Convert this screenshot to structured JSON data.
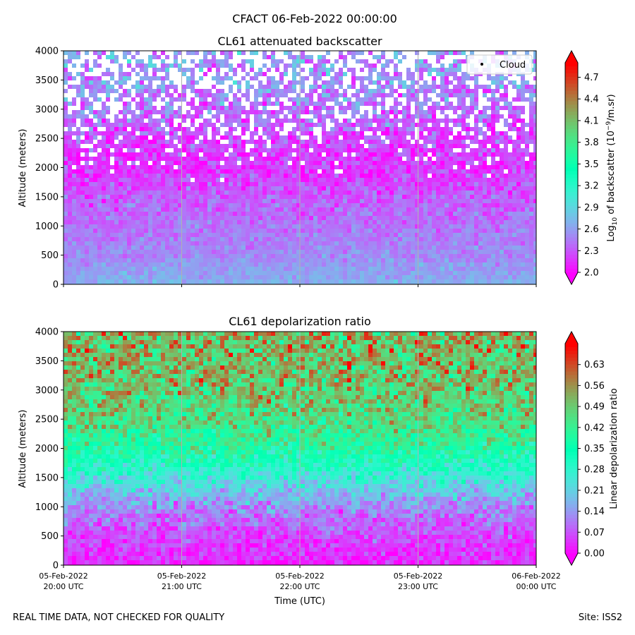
{
  "figure": {
    "suptitle": "CFACT 06-Feb-2022 00:00:00",
    "footer_left": "REAL TIME DATA, NOT CHECKED FOR QUALITY",
    "footer_right": "Site: ISS2",
    "xlabel": "Time (UTC)"
  },
  "chart_data": [
    {
      "type": "heatmap",
      "title": "CL61 attenuated backscatter",
      "ylabel": "Altitude (meters)",
      "xlabel": "",
      "x_range": [
        "05-Feb-2022 20:00 UTC",
        "06-Feb-2022 00:00 UTC"
      ],
      "xticks": [],
      "yticks": [
        "0",
        "500",
        "1000",
        "1500",
        "2000",
        "2500",
        "3000",
        "3500",
        "4000"
      ],
      "ylim": [
        0,
        4000
      ],
      "grid": "vertical lines at each hour",
      "legend": {
        "label": "Cloud",
        "placement": "top-right",
        "marker": "black dot"
      },
      "colorbar": {
        "label_base": "Log",
        "label_sub": "10",
        "label_mid": " of backscatter (10",
        "label_sup": "−9",
        "label_end": "/m.sr)",
        "ticks": [
          "2.0",
          "2.3",
          "2.6",
          "2.9",
          "3.2",
          "3.5",
          "3.8",
          "4.1",
          "4.4",
          "4.7"
        ],
        "range": [
          2.0,
          4.9
        ],
        "extend": "both",
        "colormap": "rainbow"
      },
      "profile": [
        {
          "altitude": 0,
          "mean_value": 2.75
        },
        {
          "altitude": 200,
          "mean_value": 2.65
        },
        {
          "altitude": 500,
          "mean_value": 2.55
        },
        {
          "altitude": 1000,
          "mean_value": 2.45
        },
        {
          "altitude": 1500,
          "mean_value": 2.35
        },
        {
          "altitude": 2000,
          "mean_value": 2.2
        },
        {
          "altitude": 2500,
          "mean_value": 2.25
        },
        {
          "altitude": 3000,
          "mean_value": 2.45
        },
        {
          "altitude": 3500,
          "mean_value": 2.55
        },
        {
          "altitude": 4000,
          "mean_value": 2.6
        }
      ]
    },
    {
      "type": "heatmap",
      "title": "CL61 depolarization ratio",
      "ylabel": "Altitude (meters)",
      "xlabel": "Time (UTC)",
      "x_range": [
        "05-Feb-2022 20:00 UTC",
        "06-Feb-2022 00:00 UTC"
      ],
      "xticks": [
        {
          "date": "05-Feb-2022",
          "time": "20:00 UTC"
        },
        {
          "date": "05-Feb-2022",
          "time": "21:00 UTC"
        },
        {
          "date": "05-Feb-2022",
          "time": "22:00 UTC"
        },
        {
          "date": "05-Feb-2022",
          "time": "23:00 UTC"
        },
        {
          "date": "06-Feb-2022",
          "time": "00:00 UTC"
        }
      ],
      "yticks": [
        "0",
        "500",
        "1000",
        "1500",
        "2000",
        "2500",
        "3000",
        "3500",
        "4000"
      ],
      "ylim": [
        0,
        4000
      ],
      "grid": "vertical lines at each hour",
      "colorbar": {
        "label": "Linear depolarization ratio",
        "ticks": [
          "0.00",
          "0.07",
          "0.14",
          "0.21",
          "0.28",
          "0.35",
          "0.42",
          "0.49",
          "0.56",
          "0.63"
        ],
        "range": [
          0.0,
          0.7
        ],
        "extend": "both",
        "colormap": "rainbow"
      },
      "profile": [
        {
          "altitude": 0,
          "mean_value": 0.03
        },
        {
          "altitude": 500,
          "mean_value": 0.06
        },
        {
          "altitude": 1000,
          "mean_value": 0.12
        },
        {
          "altitude": 1500,
          "mean_value": 0.25
        },
        {
          "altitude": 2000,
          "mean_value": 0.38
        },
        {
          "altitude": 2500,
          "mean_value": 0.47
        },
        {
          "altitude": 3000,
          "mean_value": 0.5
        },
        {
          "altitude": 3500,
          "mean_value": 0.52
        },
        {
          "altitude": 4000,
          "mean_value": 0.53
        }
      ]
    }
  ]
}
